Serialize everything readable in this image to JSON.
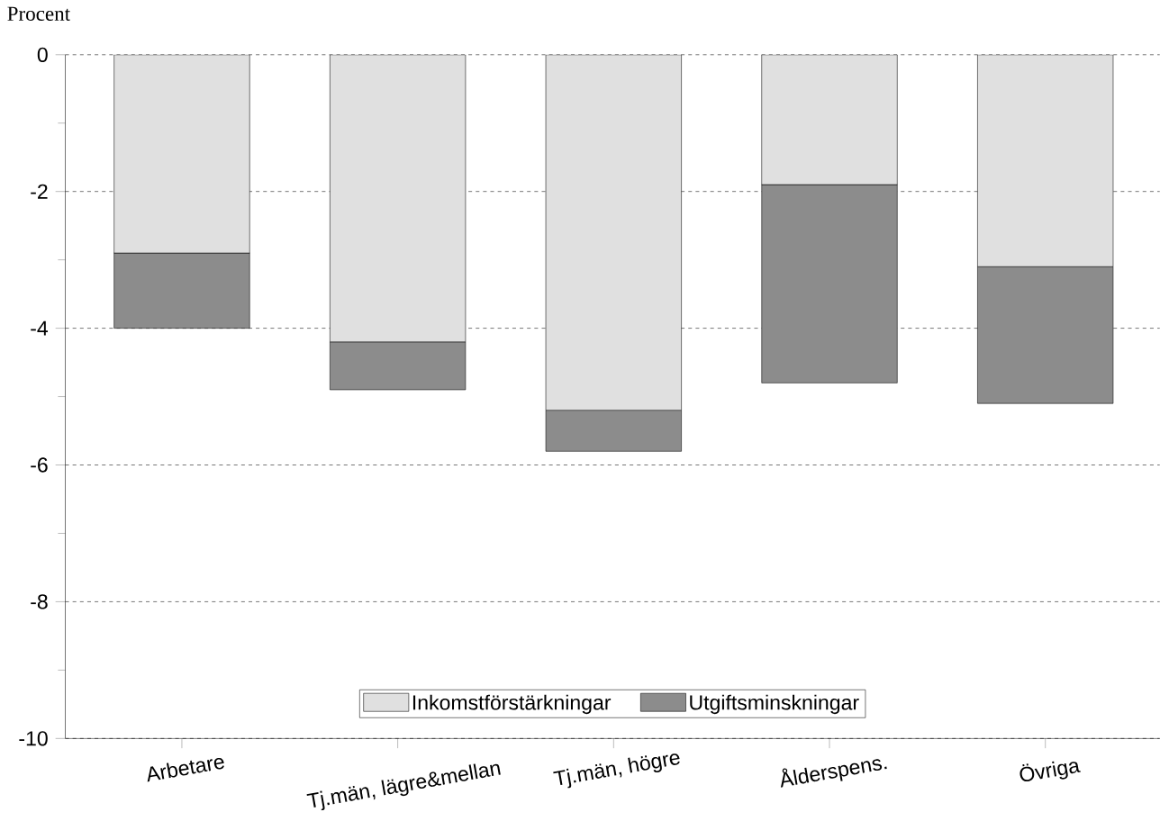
{
  "chart_data": {
    "type": "bar",
    "stacked": true,
    "ylabel": "Procent",
    "categories": [
      "Arbetare",
      "Tj.män, lägre&mellan",
      "Tj.män, högre",
      "Ålderspens.",
      "Övriga"
    ],
    "series": [
      {
        "name": "Inkomstförstärkningar",
        "color": "#e0e0e0",
        "values": [
          -2.9,
          -4.2,
          -5.2,
          -1.9,
          -3.1
        ]
      },
      {
        "name": "Utgiftsminskningar",
        "color": "#8c8c8c",
        "values": [
          -1.1,
          -0.7,
          -0.6,
          -2.9,
          -2.0
        ]
      }
    ],
    "ylim": [
      -10,
      0
    ],
    "yticks": [
      -10,
      -8,
      -6,
      -4,
      -2,
      0
    ],
    "grid": "y",
    "legend": "bottom"
  }
}
